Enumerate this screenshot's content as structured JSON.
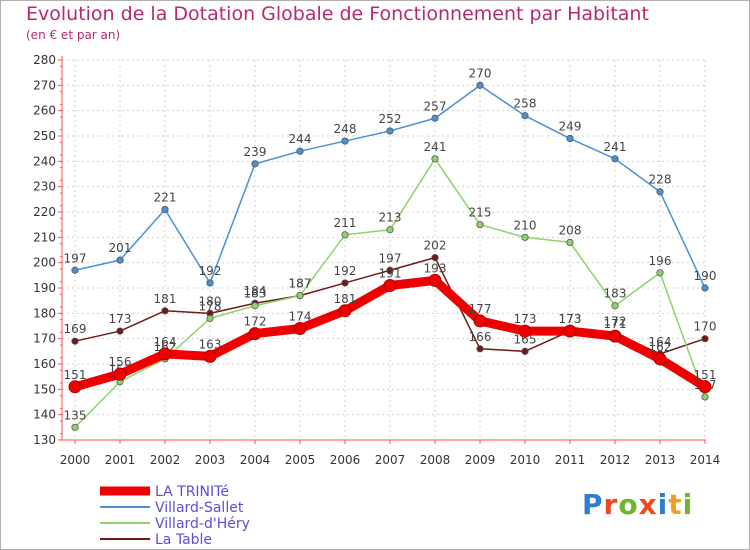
{
  "header": {
    "title": "Evolution de la Dotation Globale de Fonctionnement par Habitant",
    "subtitle": "(en € et par an)"
  },
  "logo": {
    "text": "Proxiti",
    "letter_colors": [
      "#2a7fd4",
      "#e84c1e",
      "#6cb52d",
      "#e84c1e",
      "#2a7fd4",
      "#f0a020",
      "#6cb52d"
    ]
  },
  "chart_data": {
    "type": "line",
    "x": [
      2000,
      2001,
      2002,
      2003,
      2004,
      2005,
      2006,
      2007,
      2008,
      2009,
      2010,
      2011,
      2012,
      2013,
      2014
    ],
    "ylim": [
      130,
      280
    ],
    "yticks": [
      130,
      140,
      150,
      160,
      170,
      180,
      190,
      200,
      210,
      220,
      230,
      240,
      250,
      260,
      270,
      280
    ],
    "grid": "dashed",
    "legend_position": "bottom-left",
    "series": [
      {
        "name": "La Table",
        "color": "#6e1a1a",
        "values": [
          169,
          173,
          181,
          180,
          184,
          187,
          192,
          197,
          202,
          166,
          165,
          173,
          172,
          164,
          170
        ]
      },
      {
        "name": "Villard-d'Héry",
        "color": "#8fd16a",
        "values": [
          135,
          153,
          162,
          178,
          183,
          187,
          211,
          213,
          241,
          215,
          210,
          208,
          183,
          196,
          147
        ]
      },
      {
        "name": "Villard-Sallet",
        "color": "#4a90d4",
        "values": [
          197,
          201,
          221,
          192,
          239,
          244,
          248,
          252,
          257,
          270,
          258,
          249,
          241,
          228,
          190
        ]
      },
      {
        "name": "LA TRINITé",
        "color": "#ee0000",
        "values": [
          151,
          156,
          164,
          163,
          172,
          174,
          181,
          191,
          193,
          177,
          173,
          173,
          171,
          162,
          151
        ]
      }
    ]
  }
}
